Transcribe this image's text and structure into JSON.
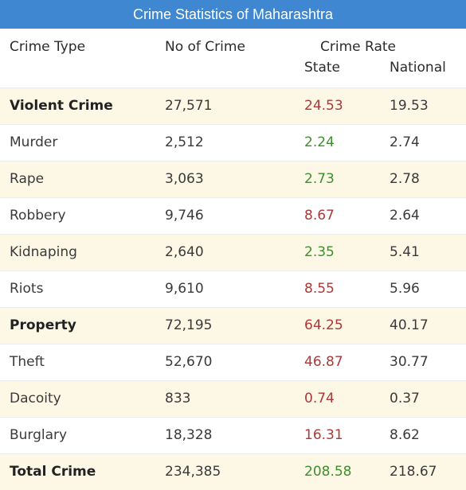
{
  "title": "Crime Statistics of Maharashtra",
  "headers": {
    "crime_type": "Crime Type",
    "no_of_crime": "No of Crime",
    "crime_rate": "Crime Rate",
    "state": "State",
    "national": "National"
  },
  "colors": {
    "header_bar": "#3f87d0",
    "row_stripe": "#fdf8e6",
    "above_national": "#a83a3a",
    "below_national": "#3e8e2f"
  },
  "rows": [
    {
      "type": "Violent Crime",
      "count": "27,571",
      "state": "24.53",
      "national": "19.53"
    },
    {
      "type": "Murder",
      "count": "2,512",
      "state": "2.24",
      "national": "2.74"
    },
    {
      "type": "Rape",
      "count": "3,063",
      "state": "2.73",
      "national": "2.78"
    },
    {
      "type": "Robbery",
      "count": "9,746",
      "state": "8.67",
      "national": "2.64"
    },
    {
      "type": "Kidnaping",
      "count": "2,640",
      "state": "2.35",
      "national": "5.41"
    },
    {
      "type": "Riots",
      "count": "9,610",
      "state": "8.55",
      "national": "5.96"
    },
    {
      "type": "Property",
      "count": "72,195",
      "state": "64.25",
      "national": "40.17"
    },
    {
      "type": "Theft",
      "count": "52,670",
      "state": "46.87",
      "national": "30.77"
    },
    {
      "type": "Dacoity",
      "count": "833",
      "state": "0.74",
      "national": "0.37"
    },
    {
      "type": "Burglary",
      "count": "18,328",
      "state": "16.31",
      "national": "8.62"
    },
    {
      "type": "Total Crime",
      "count": "234,385",
      "state": "208.58",
      "national": "218.67"
    }
  ]
}
